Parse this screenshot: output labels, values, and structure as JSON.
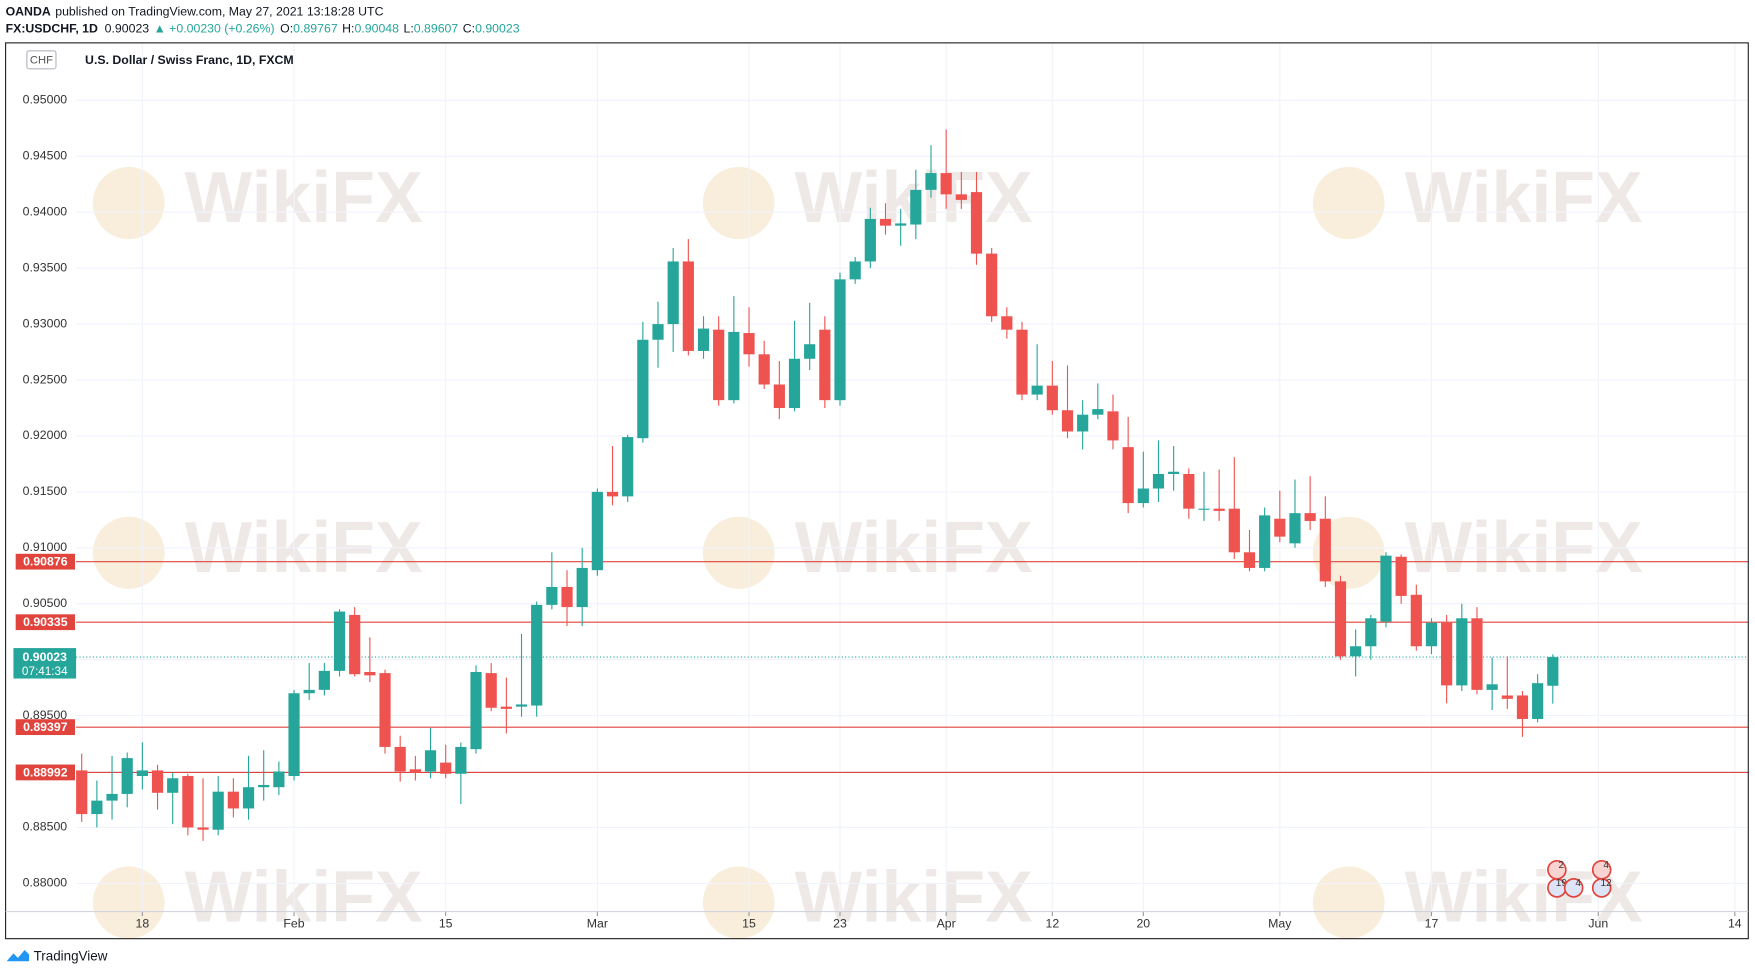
{
  "chart_data": {
    "type": "candlestick",
    "header": {
      "publisher": "OANDA",
      "published": "published on TradingView.com, May 27, 2021 13:18:28 UTC",
      "symbol": "FX:USDCHF, 1D",
      "change_arrow": "▲",
      "change": "+0.00230 (+0.26%)",
      "ohlc_labels": [
        "O:",
        "H:",
        "L:",
        "C:"
      ]
    },
    "title": "U.S. Dollar / Swiss Franc, 1D, FXCM",
    "currency": "CHF",
    "countdown": "07:41:34",
    "watermark": "WikiFX",
    "footer": "TradingView",
    "event_badges": [
      "2",
      "4",
      "19",
      "4",
      "12"
    ],
    "up_color": "#26a69a",
    "down_color": "#ef5350",
    "line_color": "#e0443d",
    "grid": true,
    "categories": [
      null,
      null,
      null,
      null,
      "18",
      null,
      null,
      null,
      null,
      null,
      null,
      null,
      null,
      null,
      "Feb",
      null,
      null,
      null,
      null,
      null,
      null,
      null,
      null,
      null,
      "15",
      null,
      null,
      null,
      null,
      null,
      null,
      null,
      null,
      null,
      "Mar",
      null,
      null,
      null,
      null,
      null,
      null,
      null,
      null,
      null,
      "15",
      null,
      null,
      null,
      null,
      null,
      "23",
      null,
      null,
      null,
      null,
      null,
      null,
      "Apr",
      null,
      null,
      null,
      null,
      null,
      null,
      "12",
      null,
      null,
      null,
      null,
      null,
      "20",
      null,
      null,
      null,
      null,
      null,
      null,
      null,
      null,
      "May",
      null,
      null,
      null,
      null,
      null,
      null,
      null,
      null,
      null,
      "17",
      null,
      null,
      null,
      null,
      null,
      null,
      null,
      null,
      null,
      null,
      "Jun",
      null,
      null,
      null,
      null,
      null,
      null,
      null,
      null,
      "14"
    ],
    "open": [
      0.8901,
      0.8862,
      0.8874,
      0.888,
      0.8896,
      0.8901,
      0.8881,
      0.8896,
      0.885,
      0.8848,
      0.8882,
      0.8867,
      0.8886,
      0.8886,
      0.8896,
      0.897,
      0.8973,
      0.899,
      0.904,
      0.8989,
      0.8988,
      0.8922,
      0.8902,
      0.89,
      0.8908,
      0.8898,
      0.892,
      0.8988,
      0.8958,
      0.8958,
      0.8959,
      0.9049,
      0.9065,
      0.9047,
      0.908,
      0.915,
      0.9146,
      0.9198,
      0.9286,
      0.93,
      0.9356,
      0.9276,
      0.9295,
      0.9232,
      0.9292,
      0.9273,
      0.9246,
      0.9225,
      0.9269,
      0.9295,
      0.9232,
      0.934,
      0.9356,
      0.9394,
      0.9388,
      0.9389,
      0.942,
      0.9435,
      0.9416,
      0.9418,
      0.9363,
      0.9307,
      0.9295,
      0.9237,
      0.9245,
      0.9223,
      0.9204,
      0.9219,
      0.9222,
      0.919,
      0.914,
      0.9153,
      0.9166,
      0.9166,
      0.9134,
      0.9135,
      0.9135,
      0.9096,
      0.9082,
      0.9126,
      0.9104,
      0.9131,
      0.9126,
      0.907,
      0.9003,
      0.9012,
      0.9034,
      0.9092,
      0.9058,
      0.9012,
      0.9033,
      0.8977,
      0.9037,
      0.8973,
      0.8968,
      0.8968,
      0.8947,
      0.89767,
      null,
      null,
      null,
      null,
      null,
      null,
      null,
      null,
      null,
      null,
      null,
      null
    ],
    "high": [
      0.8916,
      0.8892,
      0.8914,
      0.8917,
      0.8926,
      0.8906,
      0.8899,
      0.8898,
      0.8894,
      0.8896,
      0.8894,
      0.8914,
      0.8919,
      0.8909,
      0.8973,
      0.8997,
      0.8997,
      0.9045,
      0.9047,
      0.902,
      0.8991,
      0.8932,
      0.8914,
      0.8939,
      0.8924,
      0.8926,
      0.8995,
      0.8997,
      0.8984,
      0.9023,
      0.9052,
      0.9096,
      0.908,
      0.91,
      0.9153,
      0.9191,
      0.9201,
      0.9302,
      0.932,
      0.9368,
      0.9376,
      0.9307,
      0.9307,
      0.9325,
      0.9315,
      0.9285,
      0.9267,
      0.9303,
      0.9319,
      0.9307,
      0.9346,
      0.936,
      0.9404,
      0.9408,
      0.9403,
      0.9438,
      0.946,
      0.9474,
      0.9436,
      0.9436,
      0.9368,
      0.9315,
      0.9302,
      0.9282,
      0.9267,
      0.9263,
      0.9232,
      0.9247,
      0.9237,
      0.9217,
      0.9186,
      0.9196,
      0.9191,
      0.9171,
      0.9168,
      0.917,
      0.9181,
      0.9116,
      0.9136,
      0.9151,
      0.9161,
      0.9164,
      0.9146,
      0.9075,
      0.9027,
      0.904,
      0.9096,
      0.9094,
      0.9067,
      0.9037,
      0.904,
      0.905,
      0.9047,
      0.9002,
      0.9003,
      0.8972,
      0.8987,
      0.90048,
      null,
      null,
      null,
      null,
      null,
      null,
      null,
      null,
      null,
      null,
      null,
      null
    ],
    "low": [
      0.8855,
      0.885,
      0.8857,
      0.8868,
      0.8884,
      0.8866,
      0.8853,
      0.8843,
      0.8838,
      0.8843,
      0.8859,
      0.8857,
      0.8874,
      0.8879,
      0.8892,
      0.8964,
      0.8968,
      0.8985,
      0.8985,
      0.898,
      0.8916,
      0.8891,
      0.8892,
      0.8894,
      0.8894,
      0.8871,
      0.8916,
      0.8954,
      0.8934,
      0.8949,
      0.8949,
      0.9045,
      0.903,
      0.903,
      0.9075,
      0.9138,
      0.9141,
      0.9194,
      0.9261,
      0.9275,
      0.9272,
      0.9269,
      0.9227,
      0.9229,
      0.9262,
      0.9242,
      0.9215,
      0.9222,
      0.9259,
      0.9225,
      0.9227,
      0.9336,
      0.935,
      0.938,
      0.937,
      0.9376,
      0.9413,
      0.9403,
      0.9403,
      0.9353,
      0.9302,
      0.9287,
      0.9232,
      0.9232,
      0.9219,
      0.9198,
      0.9188,
      0.9215,
      0.9188,
      0.9131,
      0.9136,
      0.9141,
      0.9151,
      0.9126,
      0.9124,
      0.9124,
      0.909,
      0.9079,
      0.9079,
      0.9105,
      0.91,
      0.9116,
      0.9065,
      0.9,
      0.8985,
      0.9,
      0.9029,
      0.905,
      0.9008,
      0.9005,
      0.8961,
      0.8972,
      0.8969,
      0.8955,
      0.8956,
      0.8931,
      0.8944,
      0.89607,
      null,
      null,
      null,
      null,
      null,
      null,
      null,
      null,
      null,
      null,
      null,
      null
    ],
    "close": [
      0.8862,
      0.8874,
      0.888,
      0.8912,
      0.8901,
      0.8881,
      0.8894,
      0.885,
      0.8848,
      0.8882,
      0.8867,
      0.8886,
      0.8888,
      0.89,
      0.897,
      0.8973,
      0.899,
      0.9043,
      0.8987,
      0.8986,
      0.8922,
      0.89,
      0.8899,
      0.8919,
      0.8898,
      0.8922,
      0.8989,
      0.8957,
      0.8956,
      0.896,
      0.9049,
      0.9065,
      0.9047,
      0.9082,
      0.915,
      0.9146,
      0.9199,
      0.9286,
      0.93,
      0.9356,
      0.9276,
      0.9296,
      0.9232,
      0.9293,
      0.9273,
      0.9246,
      0.9225,
      0.9269,
      0.9282,
      0.9232,
      0.934,
      0.9356,
      0.9394,
      0.9388,
      0.939,
      0.942,
      0.9435,
      0.9416,
      0.9411,
      0.9363,
      0.9307,
      0.9295,
      0.9237,
      0.9245,
      0.9223,
      0.9204,
      0.9219,
      0.9224,
      0.9196,
      0.914,
      0.9153,
      0.9166,
      0.9168,
      0.9135,
      0.9135,
      0.9133,
      0.9096,
      0.9082,
      0.9129,
      0.911,
      0.9131,
      0.9124,
      0.907,
      0.9003,
      0.9012,
      0.9037,
      0.9093,
      0.9057,
      0.9012,
      0.9033,
      0.8977,
      0.9037,
      0.8973,
      0.8978,
      0.8965,
      0.8947,
      0.8979,
      0.90023,
      null,
      null,
      null,
      null,
      null,
      null,
      null,
      null,
      null,
      null,
      null,
      null
    ],
    "ylim": [
      0.87748,
      0.95514
    ],
    "yticks": [
      {
        "value": 0.88,
        "label": "0.88000"
      },
      {
        "value": 0.885,
        "label": "0.88500"
      },
      {
        "value": 0.89,
        "label": "0.89000"
      },
      {
        "value": 0.895,
        "label": "0.89500"
      },
      {
        "value": 0.9,
        "label": "0.90000"
      },
      {
        "value": 0.905,
        "label": "0.90500"
      },
      {
        "value": 0.91,
        "label": "0.91000"
      },
      {
        "value": 0.915,
        "label": "0.91500"
      },
      {
        "value": 0.92,
        "label": "0.92000"
      },
      {
        "value": 0.925,
        "label": "0.92500"
      },
      {
        "value": 0.93,
        "label": "0.93000"
      },
      {
        "value": 0.935,
        "label": "0.93500"
      },
      {
        "value": 0.94,
        "label": "0.94000"
      },
      {
        "value": 0.945,
        "label": "0.94500"
      },
      {
        "value": 0.95,
        "label": "0.95000"
      }
    ],
    "price_lines": [
      0.90876,
      0.90335,
      0.89397,
      0.88992
    ]
  }
}
